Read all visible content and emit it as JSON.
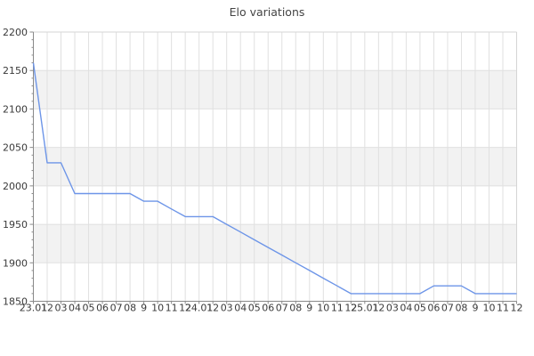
{
  "chart_data": {
    "type": "line",
    "title": "Elo variations",
    "x_tick_labels": [
      "23.01",
      "12",
      "03",
      "04",
      "05",
      "06",
      "07",
      "08",
      "9",
      "10",
      "11",
      "12",
      "24.01",
      "12",
      "03",
      "04",
      "05",
      "06",
      "07",
      "08",
      "9",
      "10",
      "11",
      "12",
      "25.01",
      "12",
      "03",
      "04",
      "05",
      "06",
      "07",
      "08",
      "9",
      "10",
      "11",
      "12"
    ],
    "values": [
      2160,
      2030,
      2030,
      1990,
      1990,
      1990,
      1990,
      1990,
      1980,
      1980,
      1970,
      1960,
      1960,
      1960,
      1950,
      1940,
      1930,
      1920,
      1910,
      1900,
      1890,
      1880,
      1870,
      1860,
      1860,
      1860,
      1860,
      1860,
      1860,
      1870,
      1870,
      1870,
      1860,
      1860,
      1860,
      1860
    ],
    "y_tick_labels": [
      "2200",
      "2150",
      "2100",
      "2050",
      "2000",
      "1950",
      "1900",
      "1850"
    ],
    "ylim": [
      1850,
      2200
    ],
    "y_major_step": 50,
    "y_minor_step": 10,
    "grid": "on",
    "legend": "none",
    "colors": {
      "line": "#6d95e8",
      "band": "#f2f2f2",
      "grid": "#e0e0e0",
      "axis": "#8a8a8a",
      "border": "#d5d5d5",
      "tick_text": "#3a3a3a",
      "title_text": "#444444",
      "background": "#ffffff"
    }
  }
}
